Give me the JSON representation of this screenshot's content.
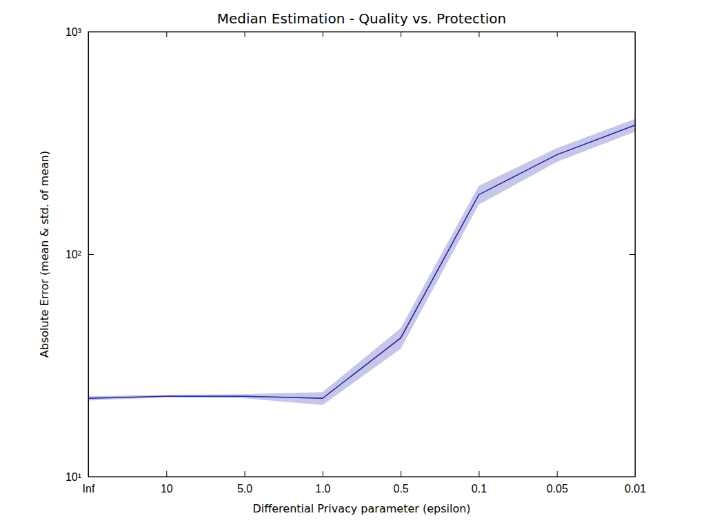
{
  "chart_data": {
    "type": "line",
    "title": "Median Estimation - Quality vs. Protection",
    "x_label": "Differential Privacy parameter (epsilon)",
    "y_label": "Absolute Error (mean & std. of mean)",
    "categories": [
      "Inf",
      "10",
      "5.0",
      "1.0",
      "0.5",
      "0.1",
      "0.05",
      "0.01"
    ],
    "values": [
      22.5,
      23,
      23,
      22.5,
      42,
      185,
      280,
      380
    ],
    "errors": [
      0.5,
      0.3,
      0.5,
      1.5,
      4.5,
      18,
      20,
      25
    ],
    "color": "#1a1aa6",
    "log": "y",
    "grid": false,
    "ylim": [
      10,
      1000
    ],
    "yticks": [
      {
        "value": 10,
        "label": "10¹"
      },
      {
        "value": 100,
        "label": "10²"
      },
      {
        "value": 1000,
        "label": "10³"
      }
    ]
  }
}
